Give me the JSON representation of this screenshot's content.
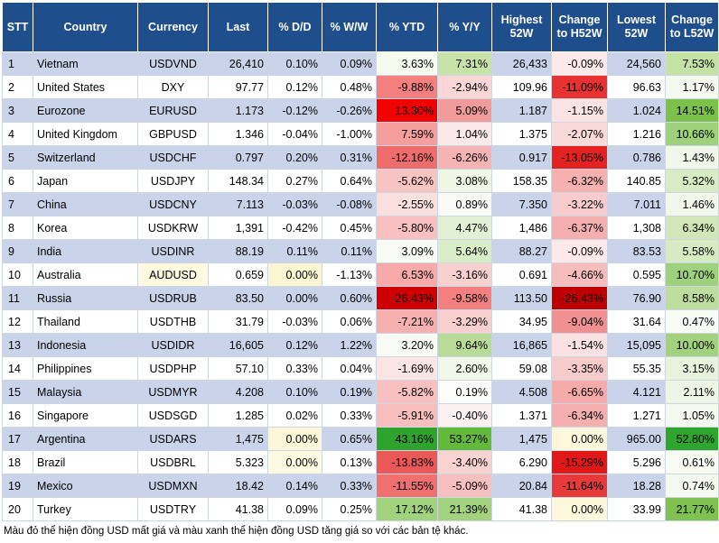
{
  "headers": [
    "STT",
    "Country",
    "Currency",
    "Last",
    "% D/D",
    "% W/W",
    "% YTD",
    "% Y/Y",
    "Highest 52W",
    "Change to H52W",
    "Lowest 52W",
    "Change to L52W"
  ],
  "rows": [
    {
      "cells": [
        "1",
        "Vietnam",
        "USDVND",
        "26,410",
        "0.10%",
        "0.09%",
        "3.63%",
        "7.31%",
        "26,433",
        "-0.09%",
        "24,560",
        "7.53%"
      ],
      "colors": [
        null,
        null,
        null,
        null,
        null,
        null,
        "#f6fbf0",
        "#c7e3aa",
        null,
        "#fde9e9",
        null,
        "#c5e2a5"
      ]
    },
    {
      "cells": [
        "2",
        "United States",
        "DXY",
        "97.77",
        "0.12%",
        "0.48%",
        "-9.88%",
        "-2.94%",
        "109.96",
        "-11.09%",
        "96.63",
        "1.17%"
      ],
      "colors": [
        null,
        null,
        null,
        null,
        null,
        null,
        "#f47f7f",
        "#fad6d6",
        null,
        "#e83232",
        null,
        "#f3f9ee"
      ]
    },
    {
      "cells": [
        "3",
        "Eurozone",
        "EURUSD",
        "1.173",
        "-0.12%",
        "-0.26%",
        "13.30%",
        "5.09%",
        "1.187",
        "-1.15%",
        "1.024",
        "14.51%"
      ],
      "colors": [
        null,
        null,
        null,
        null,
        null,
        null,
        "#f30000",
        "#f09a9a",
        null,
        "#fbe3e3",
        null,
        "#7cc14a"
      ]
    },
    {
      "cells": [
        "4",
        "United Kingdom",
        "GBPUSD",
        "1.346",
        "-0.04%",
        "-1.00%",
        "7.59%",
        "1.04%",
        "1.375",
        "-2.07%",
        "1.216",
        "10.66%"
      ],
      "colors": [
        null,
        null,
        null,
        null,
        null,
        null,
        "#f49e9e",
        "#fbe8e8",
        null,
        "#fad9d9",
        null,
        "#9ed17b"
      ]
    },
    {
      "cells": [
        "5",
        "Switzerland",
        "USDCHF",
        "0.797",
        "0.20%",
        "0.31%",
        "-12.16%",
        "-6.26%",
        "0.917",
        "-13.05%",
        "0.786",
        "1.43%"
      ],
      "colors": [
        null,
        null,
        null,
        null,
        null,
        null,
        "#ef6c6c",
        "#f6b3b3",
        null,
        "#e52222",
        null,
        "#f1f8ea"
      ]
    },
    {
      "cells": [
        "6",
        "Japan",
        "USDJPY",
        "148.34",
        "0.27%",
        "0.64%",
        "-5.62%",
        "3.08%",
        "158.35",
        "-6.32%",
        "140.85",
        "5.32%"
      ],
      "colors": [
        null,
        null,
        null,
        null,
        null,
        null,
        "#f8c3c3",
        "#eef7e6",
        null,
        "#f6b0b0",
        null,
        "#d7ecc4"
      ]
    },
    {
      "cells": [
        "7",
        "China",
        "USDCNY",
        "7.113",
        "-0.03%",
        "-0.08%",
        "-2.55%",
        "0.89%",
        "7.350",
        "-3.22%",
        "7.011",
        "1.46%"
      ],
      "colors": [
        null,
        null,
        null,
        null,
        null,
        null,
        "#fbe0e0",
        "#f8fbf5",
        null,
        "#f8cccc",
        null,
        "#f1f8ea"
      ]
    },
    {
      "cells": [
        "8",
        "Korea",
        "USDKRW",
        "1,391",
        "-0.42%",
        "0.45%",
        "-5.80%",
        "4.47%",
        "1,486",
        "-6.37%",
        "1,308",
        "6.34%"
      ],
      "colors": [
        null,
        null,
        null,
        null,
        null,
        null,
        "#f8c0c0",
        "#e2f1d6",
        null,
        "#f6afaf",
        null,
        "#d0e8b8"
      ]
    },
    {
      "cells": [
        "9",
        "India",
        "USDINR",
        "88.19",
        "0.11%",
        "0.11%",
        "3.09%",
        "5.64%",
        "88.27",
        "-0.09%",
        "83.53",
        "5.58%"
      ],
      "colors": [
        null,
        null,
        null,
        null,
        null,
        null,
        "#f8fbf3",
        "#d9edc9",
        null,
        "#fde9e9",
        null,
        "#d6ebc1"
      ]
    },
    {
      "cells": [
        "10",
        "Australia",
        "AUDUSD",
        "0.659",
        "0.00%",
        "-1.13%",
        "6.53%",
        "-3.16%",
        "0.691",
        "-4.66%",
        "0.595",
        "10.70%"
      ],
      "colors": [
        null,
        null,
        "#fdfae0",
        null,
        "#fbf6d2",
        null,
        "#f8aaaa",
        "#f8d0d0",
        null,
        "#f7bcbc",
        null,
        "#9ed17b"
      ]
    },
    {
      "cells": [
        "11",
        "Russia",
        "USDRUB",
        "83.50",
        "0.00%",
        "0.60%",
        "-26.43%",
        "-9.58%",
        "113.50",
        "-26.43%",
        "76.90",
        "8.58%"
      ],
      "colors": [
        null,
        null,
        null,
        null,
        null,
        null,
        "#d10000",
        "#f37f7f",
        null,
        "#bf0000",
        null,
        "#bcdd9e"
      ]
    },
    {
      "cells": [
        "12",
        "Thailand",
        "USDTHB",
        "31.79",
        "-0.03%",
        "0.06%",
        "-7.21%",
        "-3.29%",
        "34.95",
        "-9.04%",
        "31.64",
        "0.47%"
      ],
      "colors": [
        null,
        null,
        null,
        null,
        null,
        null,
        "#f6b0b0",
        "#f8cfcf",
        null,
        "#f19090",
        null,
        "#f9fcf6"
      ]
    },
    {
      "cells": [
        "13",
        "Indonesia",
        "USDIDR",
        "16,605",
        "0.12%",
        "1.22%",
        "3.20%",
        "9.64%",
        "16,865",
        "-1.54%",
        "15,095",
        "10.00%"
      ],
      "colors": [
        null,
        null,
        null,
        null,
        null,
        null,
        "#f7fbf3",
        "#b8dc98",
        null,
        "#fbe1e1",
        null,
        "#a2d27e"
      ]
    },
    {
      "cells": [
        "14",
        "Philippines",
        "USDPHP",
        "57.10",
        "0.33%",
        "0.04%",
        "-1.69%",
        "2.60%",
        "59.08",
        "-3.35%",
        "55.35",
        "3.15%"
      ],
      "colors": [
        null,
        null,
        null,
        null,
        null,
        null,
        "#fce5e5",
        "#f0f8e9",
        null,
        "#f8cbcb",
        null,
        "#e7f3dd"
      ]
    },
    {
      "cells": [
        "15",
        "Malaysia",
        "USDMYR",
        "4.208",
        "0.10%",
        "0.19%",
        "-5.82%",
        "0.19%",
        "4.508",
        "-6.65%",
        "4.121",
        "2.11%"
      ],
      "colors": [
        null,
        null,
        null,
        null,
        null,
        null,
        "#f8c0c0",
        "#fcfdfa",
        null,
        "#f6aaaa",
        null,
        "#edf6e5"
      ]
    },
    {
      "cells": [
        "16",
        "Singapore",
        "USDSGD",
        "1.285",
        "0.02%",
        "0.33%",
        "-5.91%",
        "-0.40%",
        "1.371",
        "-6.34%",
        "1.271",
        "1.05%"
      ],
      "colors": [
        null,
        null,
        null,
        null,
        null,
        null,
        "#f8bebe",
        "#fdf0f0",
        null,
        "#f6afaf",
        null,
        "#f3f9ef"
      ]
    },
    {
      "cells": [
        "17",
        "Argentina",
        "USDARS",
        "1,475",
        "0.00%",
        "0.65%",
        "43.16%",
        "53.27%",
        "1,475",
        "0.00%",
        "965.00",
        "52.80%"
      ],
      "colors": [
        null,
        null,
        null,
        null,
        "#fcf7d8",
        null,
        "#2ea32e",
        "#63b93c",
        null,
        "#fdf7dc",
        null,
        "#2ea62e"
      ]
    },
    {
      "cells": [
        "18",
        "Brazil",
        "USDBRL",
        "5.323",
        "0.00%",
        "0.13%",
        "-13.83%",
        "-3.40%",
        "6.290",
        "-15.29%",
        "5.296",
        "0.61%"
      ],
      "colors": [
        null,
        null,
        null,
        null,
        "#fdfae2",
        null,
        "#ec5858",
        "#f9d2d2",
        null,
        "#e21818",
        null,
        "#f8fbf4"
      ]
    },
    {
      "cells": [
        "19",
        "Mexico",
        "USDMXN",
        "18.42",
        "0.14%",
        "0.33%",
        "-11.55%",
        "-5.09%",
        "20.84",
        "-11.64%",
        "18.28",
        "0.74%"
      ],
      "colors": [
        null,
        null,
        null,
        null,
        null,
        null,
        "#f07070",
        "#f6c0c0",
        null,
        "#e83a3a",
        null,
        "#f5faf0"
      ]
    },
    {
      "cells": [
        "20",
        "Turkey",
        "USDTRY",
        "41.38",
        "0.09%",
        "0.25%",
        "17.12%",
        "21.39%",
        "41.38",
        "0.00%",
        "33.99",
        "21.77%"
      ],
      "colors": [
        null,
        null,
        null,
        null,
        null,
        null,
        "#a1d27e",
        "#a3d37f",
        null,
        "#fdf7dc",
        null,
        "#7fc251"
      ]
    }
  ],
  "footnote": "Màu đỏ thể hiện đồng USD mất giá và màu xanh thể hiện đồng USD tăng giá so với các bản tệ khác."
}
